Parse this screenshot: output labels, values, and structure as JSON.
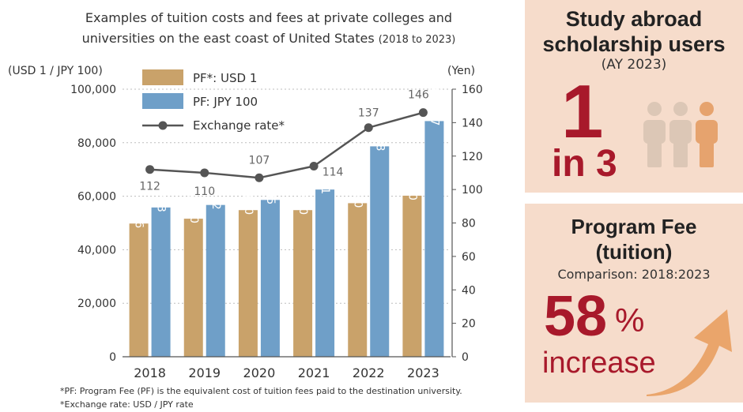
{
  "chart_data": {
    "type": "bar",
    "title": "Examples of tuition costs and fees at private colleges and universities on the east coast of United States",
    "title_suffix": "(2018 to 2023)",
    "ylabel_left": "(USD 1 / JPY 100)",
    "ylabel_right": "(Yen)",
    "categories": [
      "2018",
      "2019",
      "2020",
      "2021",
      "2022",
      "2023"
    ],
    "y_left": {
      "ylim": [
        0,
        100000
      ],
      "ticks": [
        "0",
        "20,000",
        "40,000",
        "60,000",
        "80,000",
        "100,000"
      ]
    },
    "y_right": {
      "ylim": [
        0,
        160
      ],
      "ticks": [
        "0",
        "20",
        "40",
        "60",
        "80",
        "100",
        "120",
        "140",
        "160"
      ]
    },
    "grid": true,
    "legend_position": "top-left",
    "series": [
      {
        "name": "PF*: USD 1",
        "kind": "bar",
        "axis": "left",
        "color": "#c9a26a",
        "values": [
          49786,
          51600,
          54800,
          54800,
          57400,
          60200
        ],
        "labels": [
          "49,786",
          "51,600",
          "54,800",
          "54,800",
          "57,400",
          "60,200"
        ]
      },
      {
        "name": "PF: JPY 100",
        "kind": "bar",
        "axis": "left",
        "color": "#6f9fc8",
        "values": [
          55793,
          56732,
          58605,
          62491,
          78638,
          88077
        ],
        "labels": [
          "55,793",
          "56,732",
          "58,605",
          "62,491",
          "78,638",
          "88,077"
        ]
      },
      {
        "name": "Exchange rate*",
        "kind": "line",
        "axis": "right",
        "color": "#555555",
        "values": [
          112,
          110,
          107,
          114,
          137,
          146
        ],
        "labels": [
          "112",
          "110",
          "107",
          "114",
          "137",
          "146"
        ]
      }
    ]
  },
  "footnotes": {
    "pf": "*PF: Program Fee (PF) is the equivalent cost of tuition fees paid  to the destination university.",
    "exchange": "*Exchange rate: USD / JPY rate"
  },
  "panel_scholarship": {
    "title_line1": "Study abroad",
    "title_line2": "scholarship users",
    "subtitle": "(AY 2023)",
    "big_number": "1",
    "ratio_text": "in 3",
    "highlight_color": "#e6a36e",
    "muted_color": "#dcc7b6",
    "icon": "three-people-icon"
  },
  "panel_fee": {
    "title_line1": "Program Fee",
    "title_line2": "(tuition)",
    "subtitle": "Comparison: 2018:2023",
    "big_number": "58",
    "percent_sign": "%",
    "caption": "increase",
    "icon": "up-arrow-icon",
    "arrow_color": "#eaa56b"
  }
}
